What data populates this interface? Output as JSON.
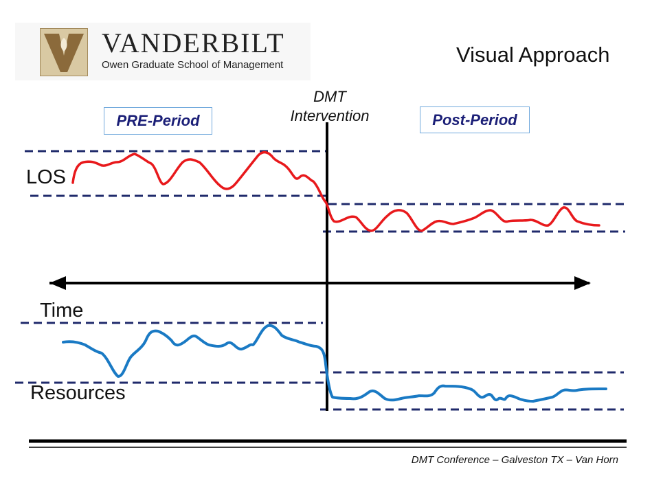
{
  "logo": {
    "name": "VANDERBILT",
    "subtitle": "Owen Graduate School of Management"
  },
  "slide_title": "Visual Approach",
  "pre_period": "PRE-Period",
  "post_period": "Post-Period",
  "intervention": {
    "line1": "DMT",
    "line2": "Intervention"
  },
  "labels": {
    "los": "LOS",
    "time": "Time",
    "resources": "Resources"
  },
  "footer": "DMT Conference – Galveston TX – Van Horn",
  "colors": {
    "los": "#e8191c",
    "resources": "#1a7ac4",
    "dashed": "#1f2a6b",
    "box_text": "#1b1f77",
    "box_border": "#6fa8dc"
  }
}
